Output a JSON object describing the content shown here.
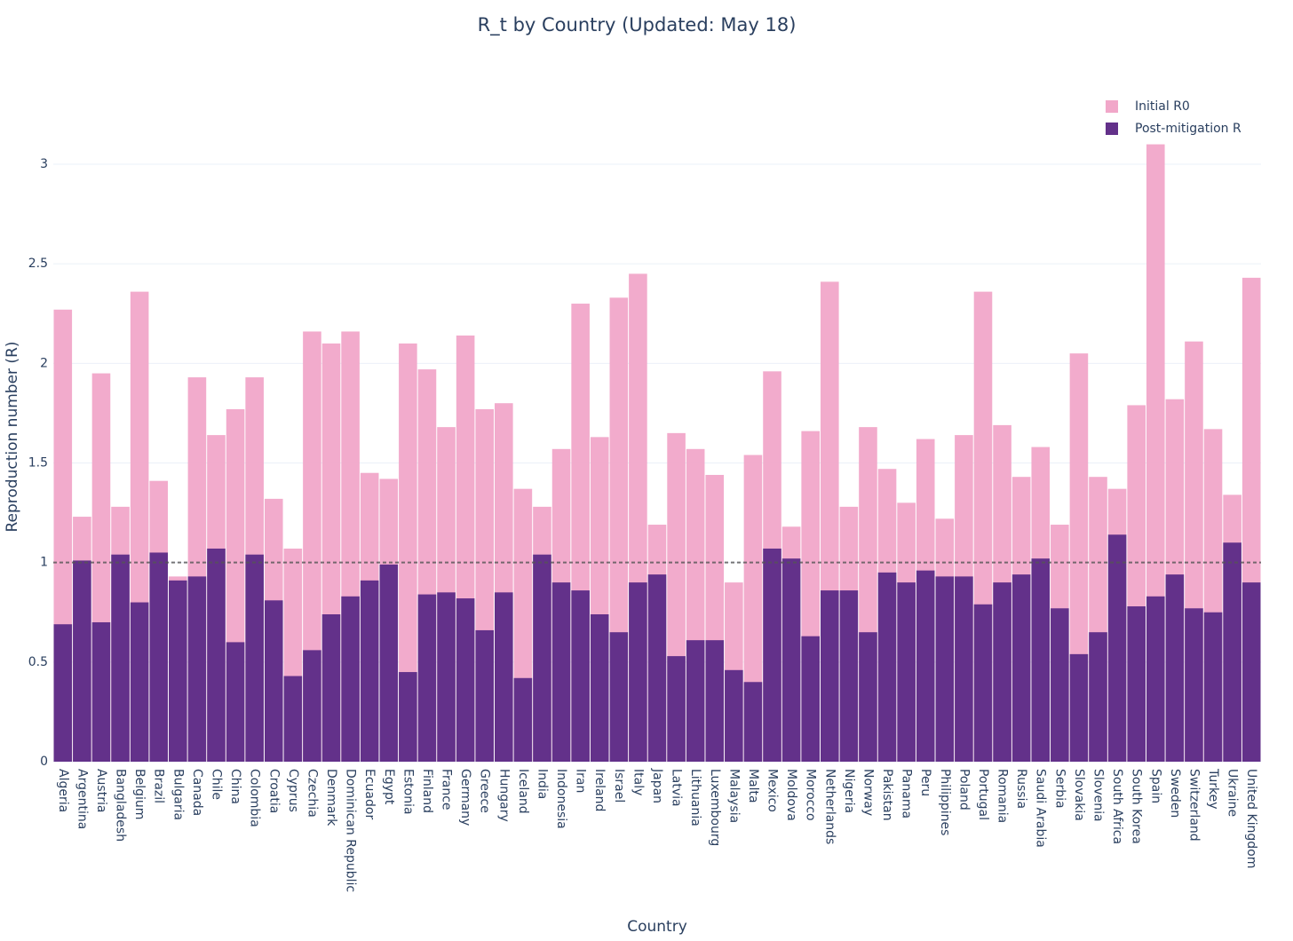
{
  "chart_data": {
    "type": "bar",
    "barmode": "overlay",
    "title": "R_t by Country (Updated: May 18)",
    "x_label": "Country",
    "y_label": "Reproduction number (R)",
    "categories": [
      "Algeria",
      "Argentina",
      "Austria",
      "Bangladesh",
      "Belgium",
      "Brazil",
      "Bulgaria",
      "Canada",
      "Chile",
      "China",
      "Colombia",
      "Croatia",
      "Cyprus",
      "Czechia",
      "Denmark",
      "Dominican Republic",
      "Ecuador",
      "Egypt",
      "Estonia",
      "Finland",
      "France",
      "Germany",
      "Greece",
      "Hungary",
      "Iceland",
      "India",
      "Indonesia",
      "Iran",
      "Ireland",
      "Israel",
      "Italy",
      "Japan",
      "Latvia",
      "Lithuania",
      "Luxembourg",
      "Malaysia",
      "Malta",
      "Mexico",
      "Moldova",
      "Morocco",
      "Netherlands",
      "Nigeria",
      "Norway",
      "Pakistan",
      "Panama",
      "Peru",
      "Philippines",
      "Poland",
      "Portugal",
      "Romania",
      "Russia",
      "Saudi Arabia",
      "Serbia",
      "Slovakia",
      "Slovenia",
      "South Africa",
      "South Korea",
      "Spain",
      "Sweden",
      "Switzerland",
      "Turkey",
      "Ukraine",
      "United Kingdom"
    ],
    "series": [
      {
        "name": "Initial R0",
        "color": "#f1a7c9",
        "values": [
          2.27,
          1.23,
          1.95,
          1.28,
          2.36,
          1.41,
          0.93,
          1.93,
          1.64,
          1.77,
          1.93,
          1.32,
          1.07,
          2.16,
          2.1,
          2.16,
          1.45,
          1.42,
          2.1,
          1.97,
          1.68,
          2.14,
          1.77,
          1.8,
          1.37,
          1.28,
          1.57,
          2.3,
          1.63,
          2.33,
          2.45,
          1.19,
          1.65,
          1.57,
          1.44,
          0.9,
          1.54,
          1.96,
          1.18,
          1.66,
          2.41,
          1.28,
          1.68,
          1.47,
          1.3,
          1.62,
          1.22,
          1.64,
          2.36,
          1.69,
          1.43,
          1.58,
          1.19,
          2.05,
          1.43,
          1.37,
          1.79,
          3.1,
          1.82,
          2.11,
          1.67,
          1.34,
          2.43
        ]
      },
      {
        "name": "Post-mitigation R",
        "color": "#63318a",
        "values": [
          0.69,
          1.01,
          0.7,
          1.04,
          0.8,
          1.05,
          0.91,
          0.93,
          1.07,
          0.6,
          1.04,
          0.81,
          0.43,
          0.56,
          0.74,
          0.83,
          0.91,
          0.99,
          0.45,
          0.84,
          0.85,
          0.82,
          0.66,
          0.85,
          0.42,
          1.04,
          0.9,
          0.86,
          0.74,
          0.65,
          0.9,
          0.94,
          0.53,
          0.61,
          0.61,
          0.46,
          0.4,
          1.07,
          1.02,
          0.63,
          0.86,
          0.86,
          0.65,
          0.95,
          0.9,
          0.96,
          0.93,
          0.93,
          0.79,
          0.9,
          0.94,
          1.02,
          0.77,
          0.54,
          0.65,
          1.14,
          0.78,
          0.83,
          0.94,
          0.77,
          0.75,
          1.1,
          0.9
        ]
      }
    ],
    "reference_line": 1,
    "ylim": [
      0,
      3.26
    ],
    "yticks": [
      0,
      0.5,
      1,
      1.5,
      2,
      2.5,
      3
    ],
    "grid": true,
    "legend": "top-right"
  }
}
